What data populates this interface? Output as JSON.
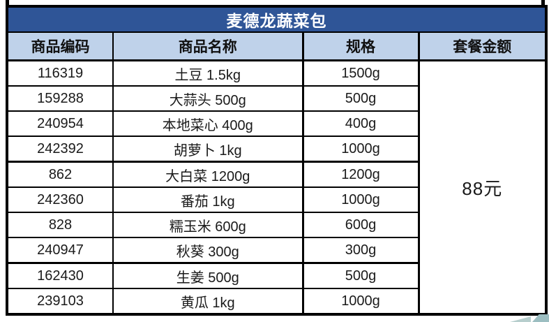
{
  "table": {
    "title": "麦德龙蔬菜包",
    "columns": [
      "商品编码",
      "商品名称",
      "规格",
      "套餐金额"
    ],
    "rows": [
      {
        "code": "116319",
        "name": "土豆 1.5kg",
        "spec": "1500g"
      },
      {
        "code": "159288",
        "name": "大蒜头 500g",
        "spec": "500g"
      },
      {
        "code": "240954",
        "name": "本地菜心 400g",
        "spec": "400g"
      },
      {
        "code": "242392",
        "name": "胡萝卜 1kg",
        "spec": "1000g"
      },
      {
        "code": "862",
        "name": "大白菜 1200g",
        "spec": "1200g"
      },
      {
        "code": "242360",
        "name": "番茄 1kg",
        "spec": "1000g"
      },
      {
        "code": "828",
        "name": "糯玉米 600g",
        "spec": "600g"
      },
      {
        "code": "240947",
        "name": "秋葵 300g",
        "spec": "300g"
      },
      {
        "code": "162430",
        "name": "生姜 500g",
        "spec": "500g"
      },
      {
        "code": "239103",
        "name": "黄瓜 1kg",
        "spec": "1000g"
      }
    ],
    "package_price": "88元"
  },
  "colors": {
    "title_bg": "#2F5597",
    "title_text": "#FFFFFF",
    "header_bg": "#BFD2EA",
    "border": "#000000",
    "watermark_teal_light": "#B7CECD",
    "watermark_teal_dark": "#9CBEC1"
  }
}
